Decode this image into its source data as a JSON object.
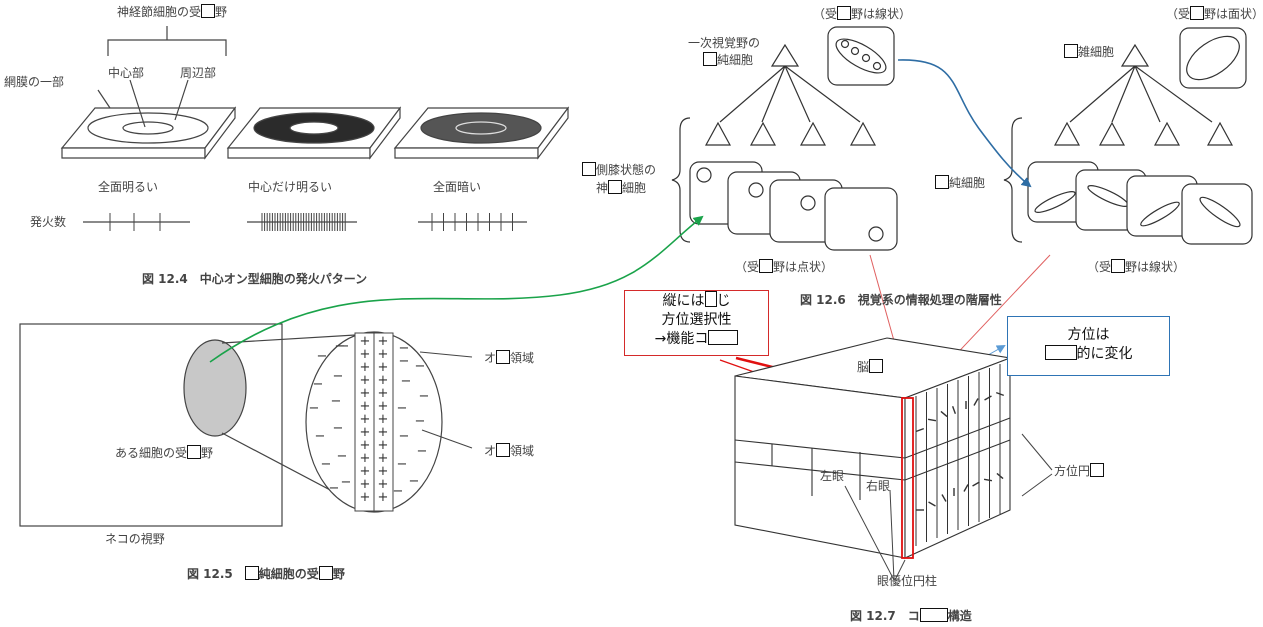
{
  "fig124": {
    "top_a": "神経節細胞の受",
    "top_b": "野",
    "center": "中心部",
    "surround": "周辺部",
    "retina": "網膜の一部",
    "cond1": "全面明るい",
    "cond2": "中心だけ明るい",
    "cond3": "全面暗い",
    "firing": "発火数",
    "caption": "図 12.4　中心オン型細胞の発火パターン"
  },
  "fig125": {
    "on_a": "オ",
    "on_b": "領域",
    "off_a": "オ",
    "off_b": "領域",
    "rf_a": "ある細胞の受",
    "rf_b": "野",
    "cat": "ネコの視野",
    "cap_a": "図 12.5　",
    "cap_b": "純細胞の受",
    "cap_c": "野",
    "minus": "−",
    "plus": "+"
  },
  "fig126": {
    "primary_a": "一次視覚野の",
    "primary_b": "純細胞",
    "rf_line_a": "（受",
    "rf_line_b": "野は線状）",
    "rf_area_a": "（受",
    "rf_area_b": "野は面状）",
    "complex_b": "雑細胞",
    "lgn_a": "側膝状態の",
    "lgn_b": "神",
    "lgn_c": "細胞",
    "simple_b": "純細胞",
    "rf_dot_a": "（受",
    "rf_dot_b": "野は点状）",
    "rf_line2_a": "（受",
    "rf_line2_b": "野は線状）",
    "caption": "図 12.6　視覚系の情報処理の階層性"
  },
  "fig127": {
    "red_l1a": "縦には",
    "red_l1b": "じ",
    "red_l2": "方位選択性",
    "red_l3a": "→機能コ",
    "blue_l1": "方位は",
    "blue_l2b": "的に変化",
    "brain_a": "脳",
    "orient_a": "方位円",
    "left_eye": "左眼",
    "right_eye": "右眼",
    "ocular": "眼優位円柱",
    "cap_a": "図 12.7　コ",
    "cap_b": "構造"
  },
  "colors": {
    "green_arrow": "#1aa34a",
    "blue_arrow": "#2e6da4",
    "red": "#d42a2a",
    "callout_blue": "#2e74b5"
  }
}
